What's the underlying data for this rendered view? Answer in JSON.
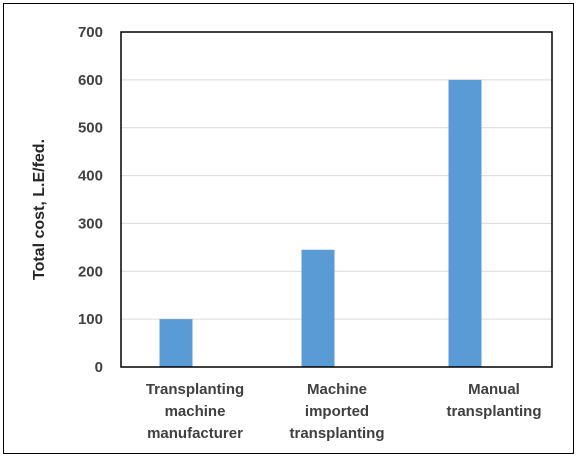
{
  "chart_data": {
    "type": "bar",
    "categories": [
      [
        "Transplanting",
        "machine",
        "manufacturer"
      ],
      [
        "Machine",
        "imported",
        "transplanting"
      ],
      [
        "Manual",
        "transplanting"
      ]
    ],
    "values": [
      100,
      245,
      600
    ],
    "ylabel": "Total cost, L.E/fed.",
    "xlabel": "",
    "ylim": [
      0,
      700
    ],
    "yticks": [
      0,
      100,
      200,
      300,
      400,
      500,
      600,
      700
    ],
    "grid": true,
    "bar_color": "#5B9BD5",
    "gridline_color": "#D9D9D9",
    "plot_border_color": "#000000"
  }
}
